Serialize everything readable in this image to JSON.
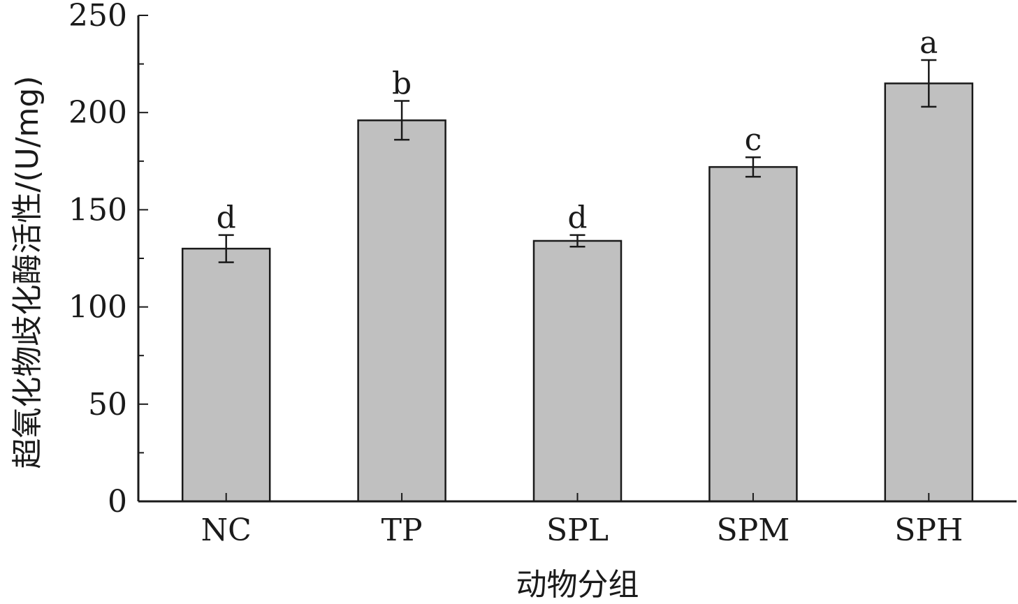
{
  "chart_data": {
    "type": "bar",
    "categories": [
      "NC",
      "TP",
      "SPL",
      "SPM",
      "SPH"
    ],
    "values": [
      130,
      196,
      134,
      172,
      215
    ],
    "errors": [
      7,
      10,
      3,
      5,
      12
    ],
    "significance": [
      "d",
      "b",
      "d",
      "c",
      "a"
    ],
    "ylim": [
      0,
      250
    ],
    "yticks": [
      0,
      50,
      100,
      150,
      200,
      250
    ],
    "xlabel": "动物分组",
    "ylabel": "超氧化物歧化酶活性/(U/mg)",
    "bar_color": "#c0c0c0",
    "grid": false
  }
}
